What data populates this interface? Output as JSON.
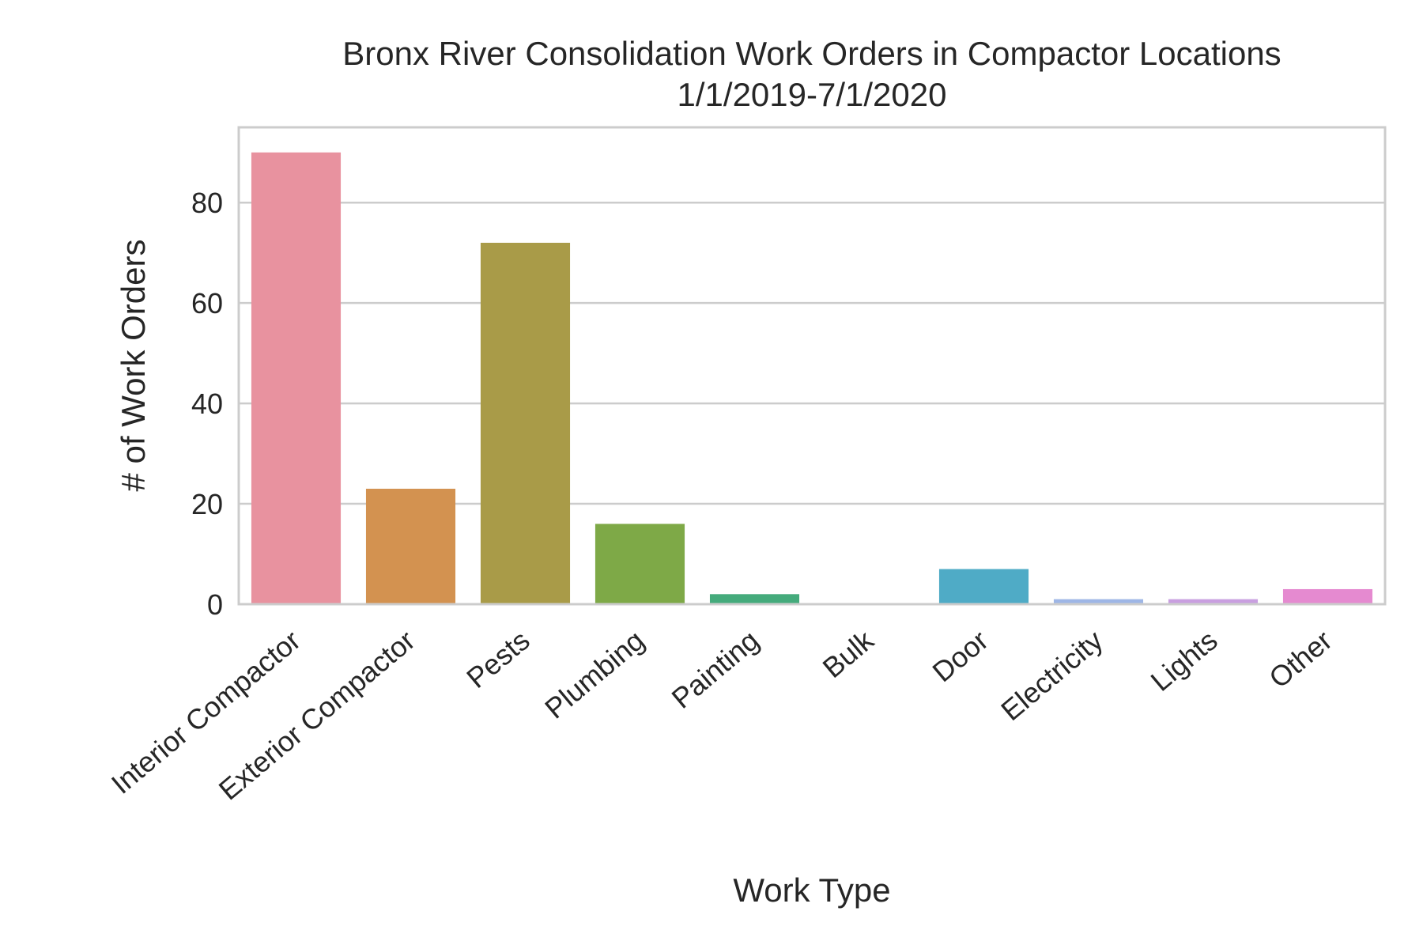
{
  "chart_data": {
    "type": "bar",
    "title": "Bronx River Consolidation Work Orders in Compactor Locations",
    "subtitle": "1/1/2019-7/1/2020",
    "xlabel": "Work Type",
    "ylabel": "# of Work Orders",
    "categories": [
      "Interior Compactor",
      "Exterior Compactor",
      "Pests",
      "Plumbing",
      "Painting",
      "Bulk",
      "Door",
      "Electricity",
      "Lights",
      "Other"
    ],
    "values": [
      90,
      23,
      72,
      16,
      2,
      0,
      7,
      1,
      1,
      3
    ],
    "colors": [
      "#e8929f",
      "#d39250",
      "#a99b48",
      "#7ea947",
      "#45ab7c",
      "#49ab9f",
      "#4fabc6",
      "#9eb6e6",
      "#c99fe0",
      "#e58ad0"
    ],
    "ylim": [
      0,
      95
    ],
    "yticks": [
      0,
      20,
      40,
      60,
      80
    ],
    "grid": true,
    "legend": "none"
  }
}
